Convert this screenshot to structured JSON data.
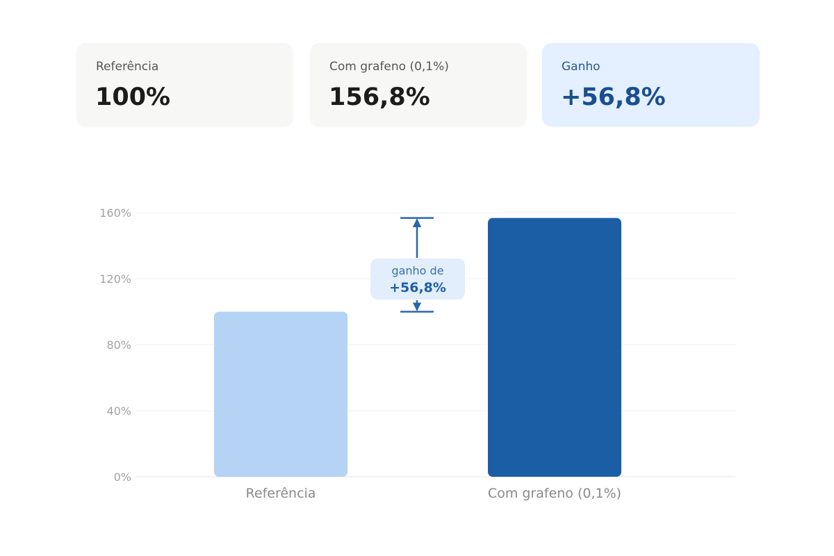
{
  "cards": [
    {
      "label": "Referência",
      "value": "100%"
    },
    {
      "label": "Com grafeno (0,1%)",
      "value": "156,8%"
    },
    {
      "label": "Ganho",
      "value": "+56,8%"
    }
  ],
  "colors": {
    "reference_bar": "#b5d3f5",
    "graphene_bar": "#1b5ea6",
    "annotation": "#2a66ad",
    "annotation_bg": "#e2eefc",
    "gain_card_bg": "#e4efff"
  },
  "annotation": {
    "line1": "ganho de",
    "line2": "+56,8%"
  },
  "chart_data": {
    "type": "bar",
    "categories": [
      "Referência",
      "Com grafeno (0,1%)"
    ],
    "values": [
      100,
      156.8
    ],
    "ylim": [
      0,
      160
    ],
    "yticks": [
      0,
      40,
      80,
      120,
      160
    ],
    "ytick_labels": [
      "0%",
      "40%",
      "80%",
      "120%",
      "160%"
    ],
    "xlabel": "",
    "ylabel": "",
    "title": "",
    "grid": true,
    "legend": "none"
  }
}
